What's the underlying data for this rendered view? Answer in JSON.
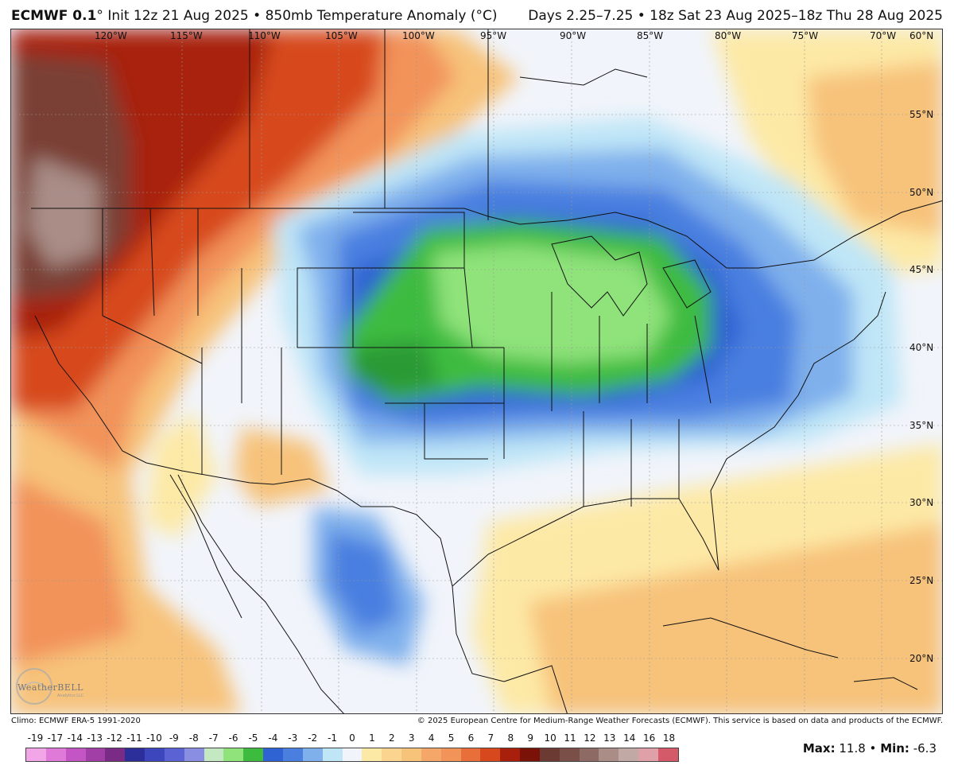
{
  "header": {
    "model": "ECMWF 0.1",
    "degree_sign": "°",
    "init": "Init 12z 21 Aug 2025",
    "bullet": "•",
    "field": "850mb Temperature Anomaly (°C)",
    "range": "Days 2.25–7.25 • 18z Sat 23 Aug 2025–18z Thu 28 Aug 2025"
  },
  "map": {
    "lon_labels": [
      "120°W",
      "115°W",
      "110°W",
      "105°W",
      "100°W",
      "95°W",
      "90°W",
      "85°W",
      "80°W",
      "75°W",
      "70°W",
      "60°N"
    ],
    "lat_labels": [
      "55°N",
      "50°N",
      "45°N",
      "40°N",
      "35°N",
      "30°N",
      "25°N",
      "20°N"
    ],
    "colors": {
      "ocean_base": "#f1f4fa",
      "warm_light": "#fde9a6",
      "warm": "#f7c27a",
      "warm_mid": "#f2935a",
      "hot": "#d7481f",
      "very_hot": "#a8200c",
      "extreme": "#7a3f35",
      "extreme_top": "#a98d86",
      "cool": "#bfe6f7",
      "cold": "#7fb0ec",
      "colder": "#4a7fe0",
      "coldest_blue": "#2f62d2",
      "green_light": "#8fe37a",
      "green": "#3dbb3f",
      "green_dark": "#2a9a34"
    }
  },
  "footer": {
    "climo": "Climo: ECMWF ERA-5 1991-2020",
    "copyright": "© 2025 European Centre for Medium-Range Weather Forecasts (ECMWF). This service is based on data and products of the ECMWF."
  },
  "colorbar": {
    "labels": [
      "-19",
      "-17",
      "-14",
      "-13",
      "-12",
      "-11",
      "-10",
      "-9",
      "-8",
      "-7",
      "-6",
      "-5",
      "-4",
      "-3",
      "-2",
      "-1",
      "0",
      "1",
      "2",
      "3",
      "4",
      "5",
      "6",
      "7",
      "8",
      "9",
      "10",
      "11",
      "12",
      "13",
      "14",
      "16",
      "18"
    ],
    "colors": [
      "#f2a6e8",
      "#e07ad8",
      "#c455c4",
      "#a23fa6",
      "#7a2b86",
      "#2c2f9a",
      "#3d46bd",
      "#5b63d4",
      "#8a8ee3",
      "#c4e8c2",
      "#8fe37a",
      "#3dbb3f",
      "#2f62d2",
      "#4a7fe0",
      "#7fb0ec",
      "#bfe6f7",
      "#f1f4fa",
      "#fde9a6",
      "#fbd58f",
      "#f7c27a",
      "#f4a768",
      "#f2935a",
      "#e86f3a",
      "#d7481f",
      "#a8200c",
      "#7a1208",
      "#6a3a33",
      "#7a4f47",
      "#8d6a63",
      "#a98d86",
      "#c1aaa5",
      "#e0a0a8",
      "#d45a6a"
    ]
  },
  "stats": {
    "max_label": "Max:",
    "max_value": "11.8",
    "sep": "•",
    "min_label": "Min:",
    "min_value": "-6.3"
  },
  "logo": {
    "text": "WeatherBELL",
    "sub": "Analytics LLC"
  }
}
